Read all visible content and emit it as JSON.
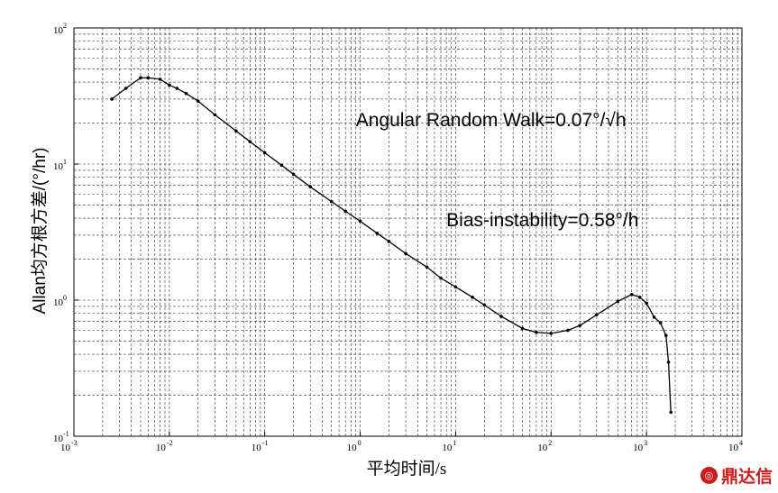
{
  "chart_data": {
    "type": "scatter",
    "xscale": "log",
    "yscale": "log",
    "xlim": [
      0.001,
      10000
    ],
    "ylim": [
      0.1,
      100
    ],
    "grid": true,
    "xlabel": "平均时间/s",
    "ylabel": "Allan均方根方差/(°/hr)",
    "x_ticks": [
      {
        "base": "10",
        "exp": "-3"
      },
      {
        "base": "10",
        "exp": "-2"
      },
      {
        "base": "10",
        "exp": "-1"
      },
      {
        "base": "10",
        "exp": "0"
      },
      {
        "base": "10",
        "exp": "1"
      },
      {
        "base": "10",
        "exp": "2"
      },
      {
        "base": "10",
        "exp": "3"
      },
      {
        "base": "10",
        "exp": "4"
      }
    ],
    "y_ticks": [
      {
        "base": "10",
        "exp": "-1"
      },
      {
        "base": "10",
        "exp": "0"
      },
      {
        "base": "10",
        "exp": "1"
      },
      {
        "base": "10",
        "exp": "2"
      }
    ],
    "annotations": [
      {
        "text": "Angular Random Walk=0.07°/√h",
        "x": 0.9,
        "y": 19
      },
      {
        "text": "Bias-instability=0.58°/h",
        "x": 8,
        "y": 3.5
      }
    ],
    "series": [
      {
        "color": "#000000",
        "x": [
          0.0025,
          0.0035,
          0.005,
          0.006,
          0.008,
          0.01,
          0.012,
          0.015,
          0.02,
          0.03,
          0.05,
          0.07,
          0.1,
          0.15,
          0.2,
          0.3,
          0.5,
          0.7,
          1,
          1.5,
          2,
          3,
          5,
          7,
          10,
          15,
          20,
          30,
          50,
          70,
          100,
          150,
          200,
          300,
          500,
          700,
          850,
          1000,
          1200,
          1400,
          1600,
          1700,
          1800
        ],
        "y": [
          30,
          36,
          43,
          43,
          42,
          38,
          36,
          33,
          29,
          23,
          17.5,
          14.6,
          12.1,
          9.8,
          8.4,
          6.8,
          5.3,
          4.5,
          3.8,
          3.1,
          2.7,
          2.2,
          1.75,
          1.45,
          1.25,
          1.05,
          0.92,
          0.76,
          0.62,
          0.58,
          0.57,
          0.6,
          0.65,
          0.78,
          0.98,
          1.1,
          1.05,
          0.95,
          0.75,
          0.68,
          0.55,
          0.35,
          0.15
        ]
      }
    ]
  },
  "watermark": {
    "text": "鼎达信",
    "icon": "logo-icon"
  }
}
